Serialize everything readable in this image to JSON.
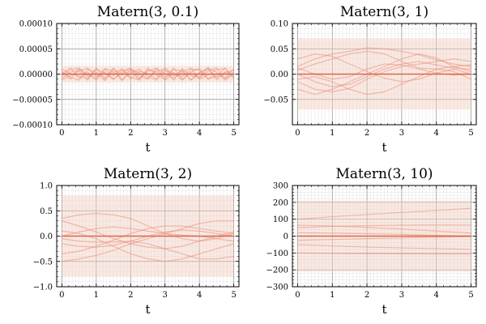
{
  "colors": {
    "band": "#f4cbbd",
    "sample": "#e9907a",
    "mean": "#d9694d",
    "grid_major": "#8f8f8f",
    "grid_minor": "#e7e7e7"
  },
  "chart_data": [
    {
      "type": "line",
      "title": "Matern(3, 0.1)",
      "xlabel": "t",
      "xlim": [
        -0.15,
        5.15
      ],
      "ylim": [
        -0.0001,
        0.0001
      ],
      "xticks": [
        0,
        1,
        2,
        3,
        4,
        5
      ],
      "xticklabels": [
        "0",
        "1",
        "2",
        "3",
        "4",
        "5"
      ],
      "yticks": [
        -0.0001,
        -5e-05,
        0,
        5e-05,
        0.0001
      ],
      "yticklabels": [
        "−0.00010",
        "−0.00005",
        "0.00000",
        "0.00005",
        "0.00010"
      ],
      "mean": {
        "x": [
          0,
          5
        ],
        "y": [
          0,
          0
        ]
      },
      "band": [
        -1.65e-05,
        1.65e-05
      ],
      "x": [
        0,
        0.25,
        0.5,
        0.75,
        1,
        1.25,
        1.5,
        1.75,
        2,
        2.25,
        2.5,
        2.75,
        3,
        3.25,
        3.5,
        3.75,
        4,
        4.25,
        4.5,
        4.75,
        5
      ],
      "samples": [
        [
          0,
          1.2e-05,
          -8e-06,
          4e-06,
          -1.2e-05,
          9e-06,
          -3e-06,
          1.1e-05,
          -1e-05,
          6e-06,
          1e-06,
          -9e-06,
          1.3e-05,
          -4e-06,
          8e-06,
          -1.1e-05,
          3e-06,
          1e-05,
          -7e-06,
          5e-06,
          -2e-06
        ],
        [
          6e-06,
          -1e-05,
          1.1e-05,
          -5e-06,
          2e-06,
          -1.3e-05,
          1e-05,
          -2e-06,
          7e-06,
          -1.2e-05,
          9e-06,
          4e-06,
          -6e-06,
          1.2e-05,
          -1e-05,
          3e-06,
          -8e-06,
          6e-06,
          1.2e-05,
          -9e-06,
          4e-06
        ],
        [
          -9e-06,
          4e-06,
          8e-06,
          -1.2e-05,
          1e-05,
          2e-06,
          -1.1e-05,
          6e-06,
          1.2e-05,
          -3e-06,
          -1e-05,
          1.1e-05,
          1e-06,
          -8e-06,
          4e-06,
          1.2e-05,
          -1e-05,
          -2e-06,
          9e-06,
          1.1e-05,
          -6e-06
        ],
        [
          3e-06,
          -6e-06,
          -1.2e-05,
          9e-06,
          3e-06,
          -7e-06,
          1.2e-05,
          -1.1e-05,
          2e-06,
          1e-05,
          -4e-06,
          -1.2e-05,
          7e-06,
          3e-06,
          -1.2e-05,
          5e-06,
          1.1e-05,
          -9e-06,
          1e-06,
          -7e-06,
          1e-05
        ],
        [
          1e-05,
          1e-06,
          -4e-06,
          -9e-06,
          1.2e-05,
          -1e-05,
          4e-06,
          8e-06,
          -6e-06,
          -1.1e-05,
          1.2e-05,
          -2e-06,
          -1e-05,
          9e-06,
          6e-06,
          -1.2e-05,
          2e-06,
          1.3e-05,
          -1.1e-05,
          3e-06,
          8e-06
        ],
        [
          -4e-06,
          9e-06,
          1.2e-05,
          -2e-06,
          -8e-06,
          1.1e-05,
          5e-06,
          -1.3e-05,
          9e-06,
          3e-06,
          -9e-06,
          6e-06,
          1e-05,
          -1.2e-05,
          1.1e-05,
          -3e-06,
          -7e-06,
          1.2e-05,
          4e-06,
          -1.2e-05,
          1e-06
        ],
        [
          -1.1e-05,
          -3e-06,
          6e-06,
          1.2e-05,
          -5e-06,
          4e-06,
          -9e-06,
          2e-06,
          1.1e-05,
          -8e-06,
          5e-06,
          1.2e-05,
          -1.2e-05,
          1e-06,
          -5e-06,
          1e-05,
          8e-06,
          -1e-05,
          -4e-06,
          1.2e-05,
          -9e-06
        ]
      ]
    },
    {
      "type": "line",
      "title": "Matern(3, 1)",
      "xlabel": "t",
      "xlim": [
        -0.15,
        5.15
      ],
      "ylim": [
        -0.1,
        0.1
      ],
      "xticks": [
        0,
        1,
        2,
        3,
        4,
        5
      ],
      "xticklabels": [
        "0",
        "1",
        "2",
        "3",
        "4",
        "5"
      ],
      "yticks": [
        -0.05,
        0,
        0.05,
        0.1
      ],
      "yticklabels": [
        "−0.05",
        "0.00",
        "0.05",
        "0.10"
      ],
      "mean": {
        "x": [
          0,
          5
        ],
        "y": [
          0,
          0
        ]
      },
      "band": [
        -0.07,
        0.07
      ],
      "x": [
        0,
        0.5,
        1,
        1.5,
        2,
        2.5,
        3,
        3.5,
        4,
        4.5,
        5
      ],
      "samples": [
        [
          0.015,
          0.03,
          0.04,
          0.045,
          0.052,
          0.05,
          0.045,
          0.038,
          0.028,
          0.02,
          0.015
        ],
        [
          0.0,
          -0.015,
          -0.025,
          -0.02,
          -0.005,
          0.01,
          0.02,
          0.025,
          0.018,
          0.012,
          0.01
        ],
        [
          -0.015,
          -0.03,
          -0.035,
          -0.028,
          -0.01,
          0.005,
          0.015,
          0.02,
          0.025,
          0.03,
          0.025
        ],
        [
          0.03,
          0.04,
          0.035,
          0.02,
          0.005,
          -0.008,
          -0.015,
          -0.01,
          0.002,
          0.01,
          0.0
        ],
        [
          -0.03,
          -0.04,
          -0.03,
          -0.015,
          0.0,
          0.015,
          0.03,
          0.04,
          0.032,
          0.015,
          0.005
        ],
        [
          0.008,
          0.02,
          0.03,
          0.04,
          0.045,
          0.04,
          0.025,
          0.012,
          0.01,
          0.015,
          0.018
        ],
        [
          -0.01,
          -0.005,
          -0.015,
          -0.03,
          -0.04,
          -0.035,
          -0.02,
          -0.005,
          0.01,
          0.005,
          -0.01
        ],
        [
          0.012,
          0.0,
          -0.01,
          -0.005,
          0.01,
          0.02,
          0.018,
          0.01,
          0.002,
          -0.002,
          0.0
        ]
      ]
    },
    {
      "type": "line",
      "title": "Matern(3, 2)",
      "xlabel": "t",
      "xlim": [
        -0.15,
        5.15
      ],
      "ylim": [
        -1.0,
        1.0
      ],
      "xticks": [
        0,
        1,
        2,
        3,
        4,
        5
      ],
      "xticklabels": [
        "0",
        "1",
        "2",
        "3",
        "4",
        "5"
      ],
      "yticks": [
        -1.0,
        -0.5,
        0,
        0.5,
        1.0
      ],
      "yticklabels": [
        "−1.0",
        "−0.5",
        "0.0",
        "0.5",
        "1.0"
      ],
      "mean": {
        "x": [
          0,
          5
        ],
        "y": [
          0,
          0
        ]
      },
      "band": [
        -0.8,
        0.8
      ],
      "x": [
        0,
        0.5,
        1,
        1.5,
        2,
        2.5,
        3,
        3.5,
        4,
        4.5,
        5
      ],
      "samples": [
        [
          0.35,
          0.42,
          0.45,
          0.42,
          0.35,
          0.2,
          0.05,
          -0.05,
          -0.1,
          -0.05,
          0.05
        ],
        [
          -0.5,
          -0.45,
          -0.38,
          -0.28,
          -0.15,
          -0.05,
          0.05,
          0.15,
          0.25,
          0.3,
          0.3
        ],
        [
          0.1,
          0.05,
          -0.05,
          -0.2,
          -0.35,
          -0.45,
          -0.5,
          -0.45,
          -0.35,
          -0.25,
          -0.15
        ],
        [
          -0.15,
          -0.2,
          -0.22,
          -0.18,
          -0.1,
          0.0,
          0.08,
          0.12,
          0.1,
          0.05,
          0.0
        ],
        [
          0.3,
          0.2,
          0.08,
          -0.05,
          -0.15,
          -0.22,
          -0.25,
          -0.2,
          -0.1,
          0.0,
          0.08
        ],
        [
          -0.35,
          -0.3,
          -0.2,
          -0.08,
          0.05,
          0.15,
          0.2,
          0.2,
          0.15,
          0.1,
          0.05
        ],
        [
          0.0,
          0.08,
          0.15,
          0.18,
          0.15,
          0.1,
          0.05,
          0.02,
          0.0,
          -0.05,
          -0.1
        ],
        [
          -0.05,
          -0.1,
          -0.12,
          -0.12,
          -0.1,
          -0.15,
          -0.25,
          -0.35,
          -0.45,
          -0.45,
          -0.4
        ]
      ]
    },
    {
      "type": "line",
      "title": "Matern(3, 10)",
      "xlabel": "t",
      "xlim": [
        -0.15,
        5.15
      ],
      "ylim": [
        -300,
        300
      ],
      "xticks": [
        0,
        1,
        2,
        3,
        4,
        5
      ],
      "xticklabels": [
        "0",
        "1",
        "2",
        "3",
        "4",
        "5"
      ],
      "yticks": [
        -300,
        -200,
        -100,
        0,
        100,
        200,
        300
      ],
      "yticklabels": [
        "−300",
        "−200",
        "−100",
        "0",
        "100",
        "200",
        "300"
      ],
      "mean": {
        "x": [
          0,
          5
        ],
        "y": [
          0,
          0
        ]
      },
      "band": [
        -210,
        210
      ],
      "x": [
        0,
        1,
        2,
        3,
        4,
        5
      ],
      "samples": [
        [
          100,
          115,
          128,
          140,
          152,
          165
        ],
        [
          50,
          58,
          62,
          65,
          66,
          65
        ],
        [
          -50,
          -58,
          -65,
          -70,
          -74,
          -78
        ],
        [
          -100,
          -102,
          -104,
          -105,
          -106,
          -107
        ],
        [
          20,
          18,
          14,
          10,
          5,
          0
        ],
        [
          -25,
          -20,
          -15,
          -10,
          -6,
          -3
        ],
        [
          65,
          60,
          52,
          42,
          30,
          18
        ]
      ]
    }
  ]
}
